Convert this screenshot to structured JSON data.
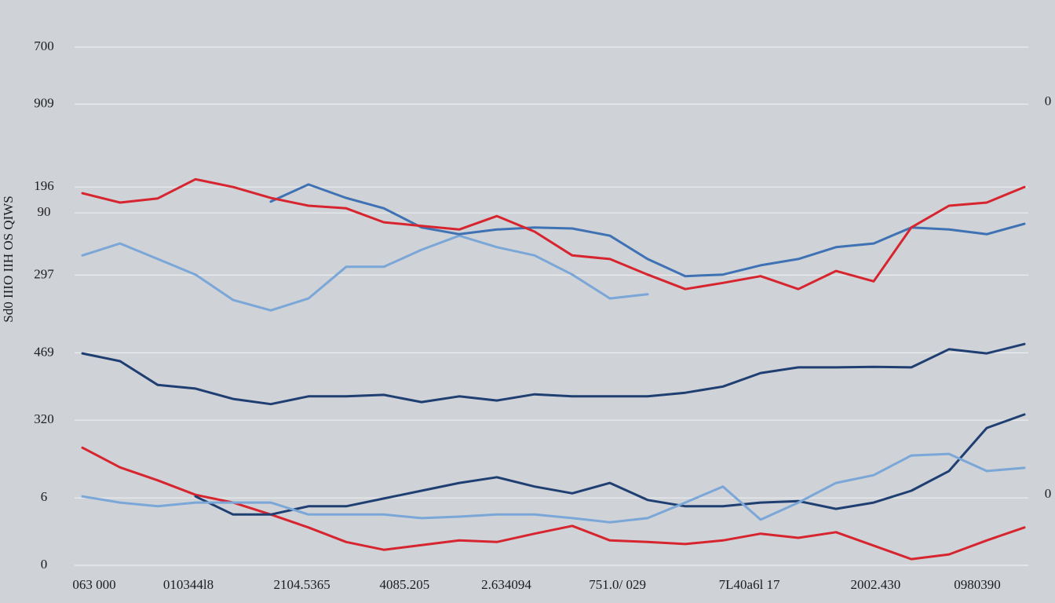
{
  "chart_data": {
    "type": "line",
    "y_label": "Sd0 IIIO IIH OS QIWS",
    "x": [
      0,
      4,
      8,
      12,
      16,
      20,
      24,
      28,
      32,
      36,
      40,
      44,
      48,
      52,
      56,
      60,
      64,
      68,
      72,
      76,
      80,
      84,
      88,
      92,
      96,
      100
    ],
    "xlim": [
      0,
      100
    ],
    "xticks": [
      {
        "value": 1.25,
        "label": "063 000"
      },
      {
        "value": 11.25,
        "label": "010344l8"
      },
      {
        "value": 23.3,
        "label": "2104.5365"
      },
      {
        "value": 34.2,
        "label": "4085.205"
      },
      {
        "value": 45,
        "label": "2.634094"
      },
      {
        "value": 56.8,
        "label": "751.0/ 029"
      },
      {
        "value": 70.8,
        "label": "7L40a6l 17"
      },
      {
        "value": 84.2,
        "label": "2002.430"
      },
      {
        "value": 95,
        "label": "0980390"
      }
    ],
    "ylim": [
      0,
      100
    ],
    "yticks": [
      0,
      {
        "value": 13,
        "label": "6"
      },
      {
        "value": 28,
        "label": "320"
      },
      {
        "value": 41,
        "label": "469"
      },
      {
        "value": 56,
        "label": "297"
      },
      {
        "value": 68,
        "label": "90"
      },
      {
        "value": 73,
        "label": "196"
      },
      {
        "value": 89,
        "label": "909"
      },
      {
        "value": 100,
        "label": "700"
      }
    ],
    "grid": true,
    "annotations": [
      "0",
      "0"
    ],
    "series": [
      {
        "color": "#7aa7d8",
        "values": [
          59.8,
          62.1,
          59.1,
          56.1,
          51.2,
          49.2,
          51.5,
          57.6,
          57.6,
          60.9,
          63.6,
          61.4,
          59.8,
          56.1,
          51.5,
          52.3,
          null,
          null,
          null,
          null,
          null,
          null,
          null,
          null,
          null,
          null
        ]
      },
      {
        "color": "#3f72b4",
        "values": [
          null,
          null,
          null,
          null,
          null,
          70.2,
          73.5,
          70.9,
          68.9,
          65.2,
          63.9,
          64.8,
          65.2,
          65,
          63.6,
          59.1,
          55.8,
          56.1,
          57.9,
          59.1,
          61.4,
          62.1,
          65.2,
          64.8,
          63.9,
          65.9
        ]
      },
      {
        "color": "#d7252f",
        "values": [
          71.8,
          70,
          70.8,
          74.5,
          73,
          70.9,
          69.4,
          68.9,
          66.2,
          65.5,
          64.8,
          67.4,
          64.4,
          59.8,
          59.1,
          56.1,
          53.3,
          54.5,
          55.8,
          53.3,
          56.8,
          54.8,
          65.2,
          69.4,
          70,
          73
        ]
      },
      {
        "color": "#1f3f73",
        "values": [
          40.9,
          39.4,
          34.8,
          34.1,
          32.1,
          31.1,
          32.6,
          32.6,
          32.9,
          31.5,
          32.6,
          31.8,
          33,
          32.6,
          32.6,
          32.6,
          33.3,
          34.5,
          37.1,
          38.2,
          38.2,
          38.3,
          38.2,
          41.7,
          40.9,
          42.7
        ]
      },
      {
        "color": "#d7252f",
        "values": [
          22.7,
          18.9,
          16.4,
          13.6,
          12.1,
          9.8,
          7.3,
          4.5,
          3,
          3.9,
          4.8,
          4.5,
          6.1,
          7.6,
          4.8,
          4.5,
          4.1,
          4.8,
          6.1,
          5.3,
          6.4,
          3.8,
          1.2,
          2.1,
          4.8,
          7.3
        ]
      },
      {
        "color": "#1f3f73",
        "values": [
          null,
          null,
          null,
          13.3,
          9.8,
          9.8,
          11.4,
          11.4,
          12.9,
          14.4,
          15.9,
          17,
          15.2,
          13.9,
          15.9,
          12.6,
          11.4,
          11.4,
          12.1,
          12.4,
          10.9,
          12.1,
          14.4,
          18.2,
          26.5,
          29.1
        ]
      },
      {
        "color": "#7aa7d8",
        "values": [
          13.3,
          12.1,
          11.4,
          12.1,
          12.1,
          12.1,
          9.8,
          9.8,
          9.8,
          9.1,
          9.4,
          9.8,
          9.8,
          9.1,
          8.3,
          9.1,
          12.1,
          15.2,
          8.8,
          12.1,
          15.9,
          17.4,
          21.2,
          21.5,
          18.2,
          18.8
        ]
      }
    ]
  }
}
